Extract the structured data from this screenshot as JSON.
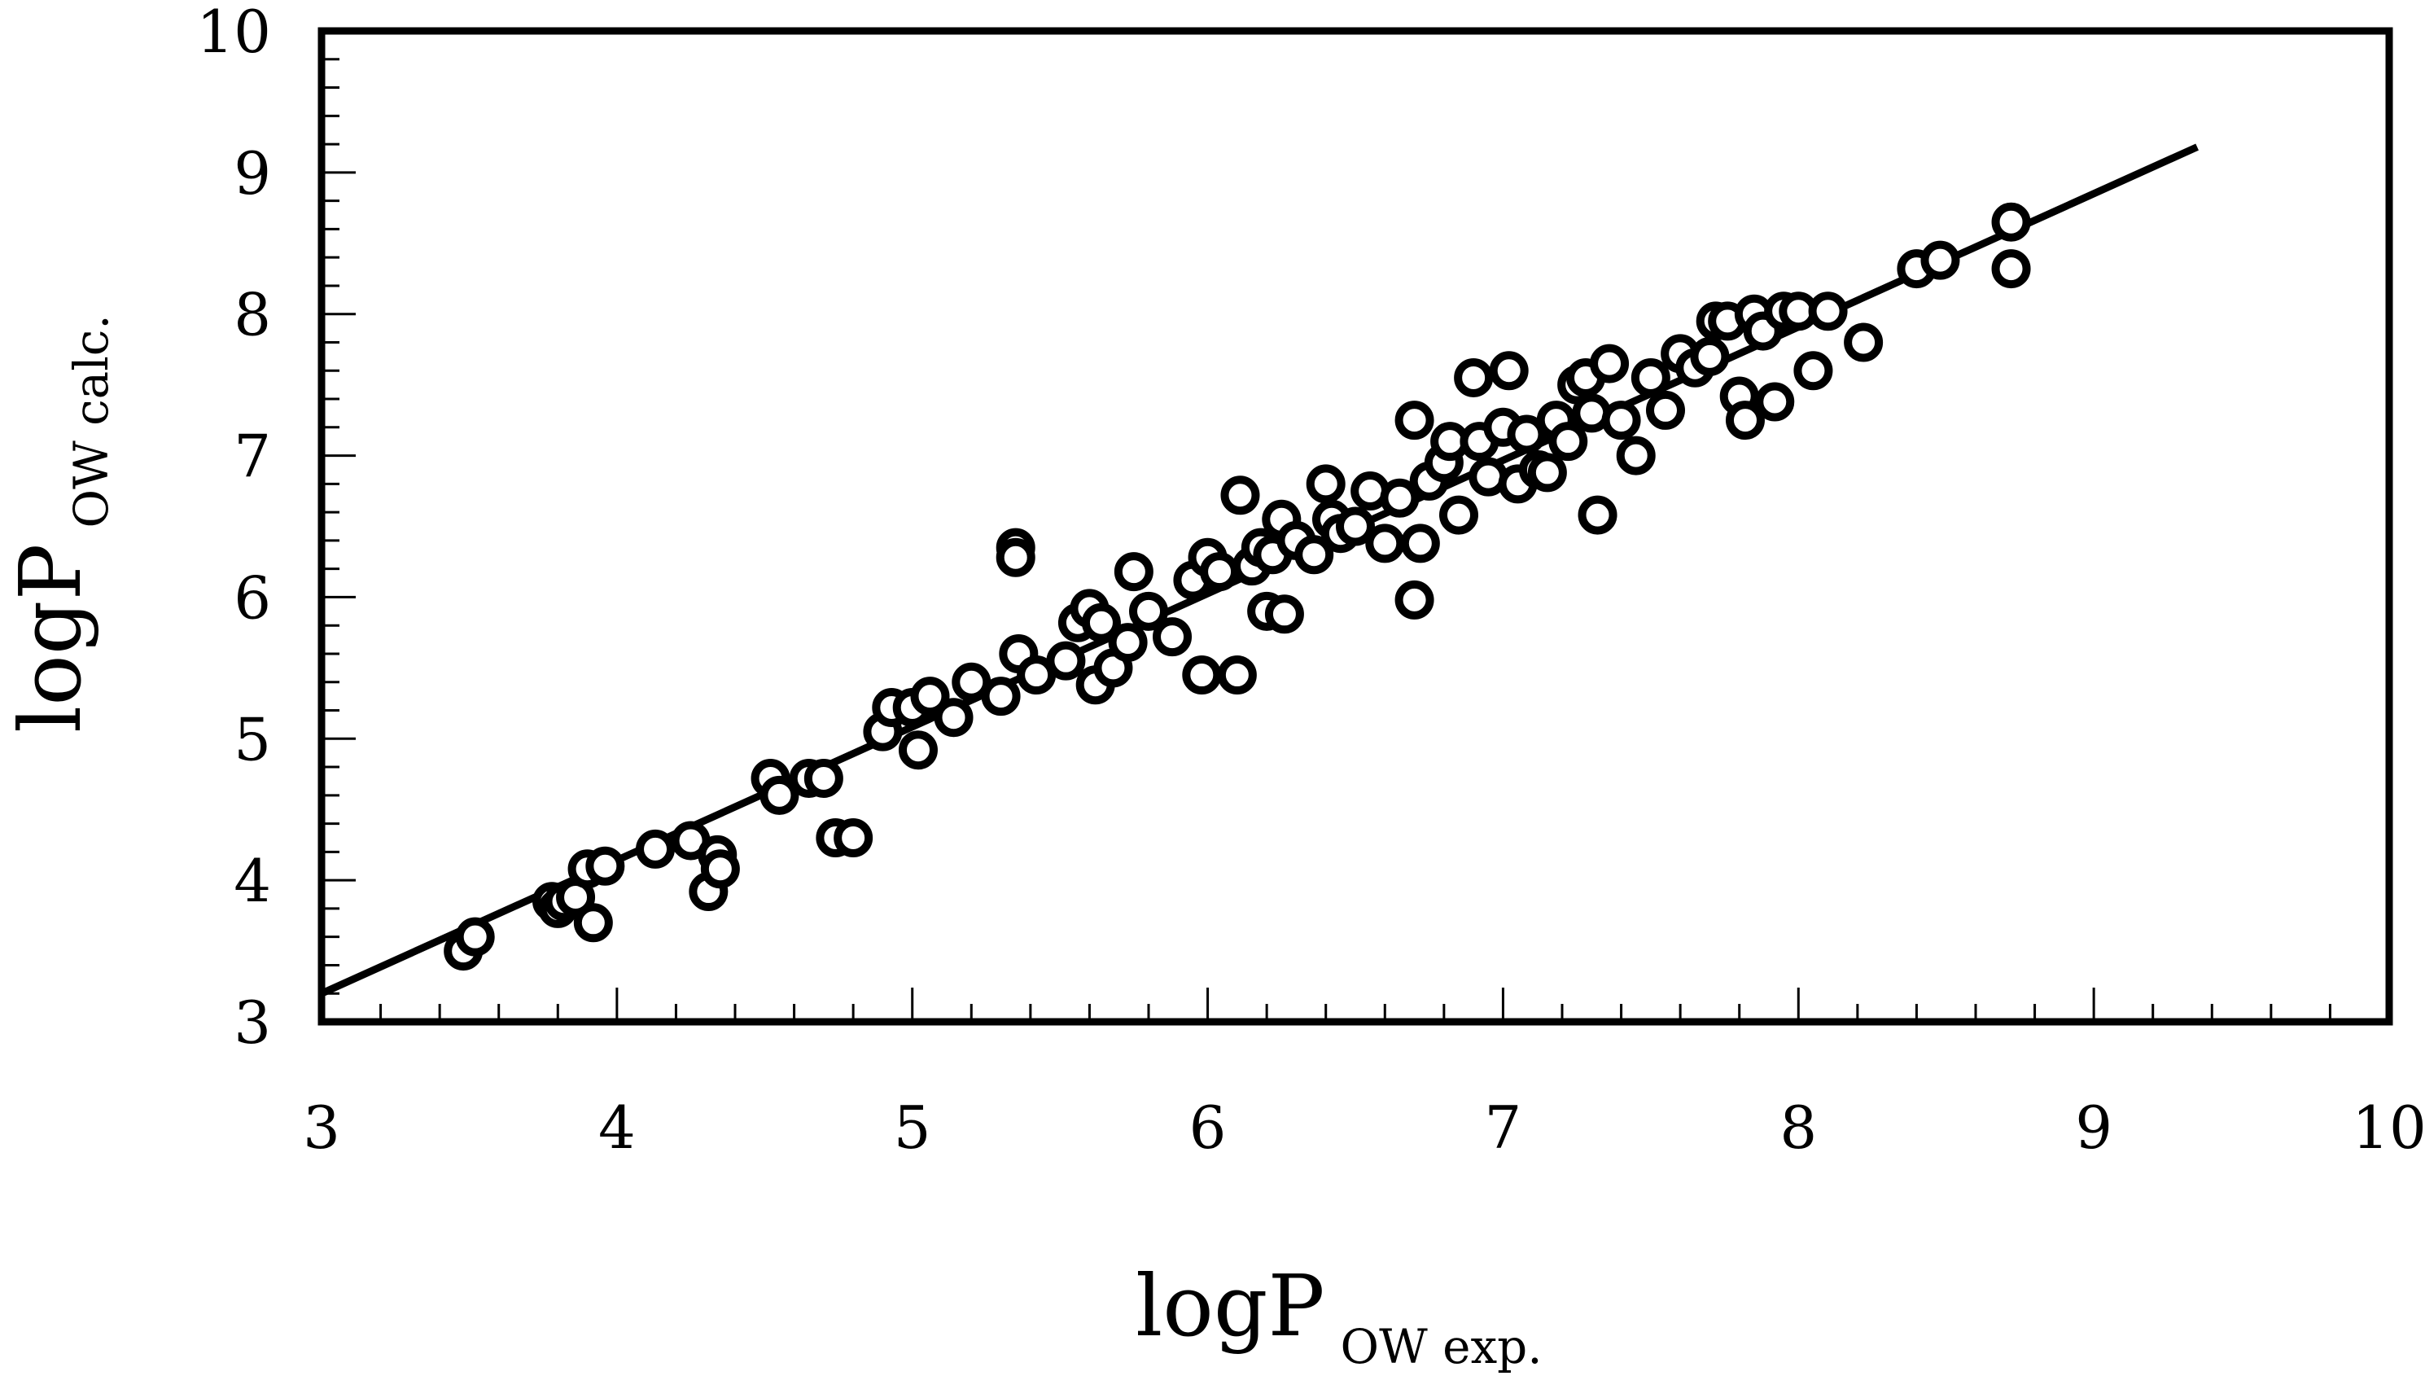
{
  "chart_data": {
    "type": "scatter",
    "title": "",
    "xlabel": {
      "main": "logP",
      "sub": "OW exp."
    },
    "ylabel": {
      "main": "logP",
      "sub": "OW calc."
    },
    "xlim": [
      3,
      10
    ],
    "ylim": [
      3,
      10
    ],
    "xticks": [
      3,
      4,
      5,
      6,
      7,
      8,
      9,
      10
    ],
    "yticks": [
      3,
      4,
      5,
      6,
      7,
      8,
      9,
      10
    ],
    "grid": false,
    "legend": "none",
    "colors": {
      "marker_stroke": "#000000",
      "marker_fill": "#ffffff",
      "line": "#000000"
    },
    "fit_line": {
      "x": [
        3.0,
        9.35
      ],
      "y": [
        3.2,
        9.18
      ]
    },
    "points": {
      "x": [
        3.48,
        3.52,
        3.78,
        3.8,
        3.82,
        3.86,
        3.9,
        3.92,
        3.96,
        4.13,
        4.25,
        4.31,
        4.34,
        4.35,
        4.52,
        4.55,
        4.65,
        4.7,
        4.74,
        4.8,
        4.9,
        4.93,
        5.0,
        5.02,
        5.06,
        5.14,
        5.2,
        5.3,
        5.35,
        5.35,
        5.36,
        5.42,
        5.52,
        5.56,
        5.6,
        5.62,
        5.64,
        5.68,
        5.73,
        5.75,
        5.8,
        5.88,
        5.95,
        5.98,
        6.0,
        6.04,
        6.1,
        6.11,
        6.15,
        6.18,
        6.2,
        6.22,
        6.25,
        6.26,
        6.3,
        6.36,
        6.4,
        6.42,
        6.45,
        6.5,
        6.55,
        6.6,
        6.65,
        6.7,
        6.7,
        6.72,
        6.75,
        6.8,
        6.82,
        6.85,
        6.9,
        6.92,
        6.95,
        7.0,
        7.02,
        7.05,
        7.08,
        7.12,
        7.15,
        7.18,
        7.22,
        7.25,
        7.28,
        7.3,
        7.32,
        7.36,
        7.4,
        7.45,
        7.5,
        7.55,
        7.6,
        7.65,
        7.7,
        7.72,
        7.76,
        7.8,
        7.82,
        7.85,
        7.88,
        7.92,
        7.95,
        8.0,
        8.05,
        8.1,
        8.22,
        8.4,
        8.48,
        8.72,
        8.72
      ],
      "y": [
        3.5,
        3.6,
        3.85,
        3.8,
        3.85,
        3.88,
        4.08,
        3.7,
        4.1,
        4.22,
        4.28,
        3.92,
        4.18,
        4.08,
        4.72,
        4.6,
        4.72,
        4.72,
        4.3,
        4.3,
        5.05,
        5.22,
        5.22,
        4.92,
        5.3,
        5.15,
        5.4,
        5.3,
        6.35,
        6.28,
        5.6,
        5.45,
        5.55,
        5.82,
        5.92,
        5.38,
        5.82,
        5.5,
        5.68,
        6.18,
        5.9,
        5.72,
        6.12,
        5.45,
        6.28,
        6.18,
        5.45,
        6.72,
        6.22,
        6.35,
        5.9,
        6.3,
        6.55,
        5.88,
        6.4,
        6.3,
        6.8,
        6.55,
        6.45,
        6.5,
        6.75,
        6.38,
        6.7,
        7.25,
        5.98,
        6.38,
        6.82,
        6.95,
        7.1,
        6.58,
        7.55,
        7.1,
        6.85,
        7.2,
        7.6,
        6.8,
        7.15,
        6.9,
        6.88,
        7.25,
        7.1,
        7.5,
        7.55,
        7.3,
        6.58,
        7.65,
        7.25,
        7.0,
        7.55,
        7.32,
        7.72,
        7.62,
        7.7,
        7.95,
        7.95,
        7.42,
        7.25,
        8.0,
        7.88,
        7.38,
        8.02,
        8.02,
        7.6,
        8.02,
        7.8,
        8.32,
        8.38,
        8.65,
        8.32
      ]
    }
  }
}
